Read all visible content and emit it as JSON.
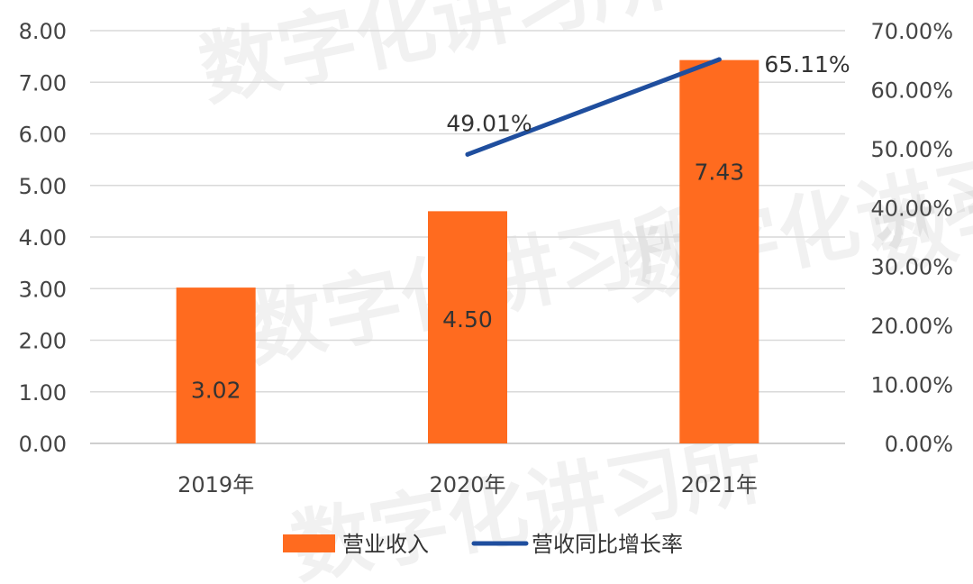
{
  "watermark": "数字化讲习所",
  "chart_data": {
    "type": "bar",
    "categories": [
      "2019年",
      "2020年",
      "2021年"
    ],
    "series": [
      {
        "name": "营业收入",
        "type": "bar",
        "axis": "left",
        "color": "#FF6B1F",
        "values": [
          3.02,
          4.5,
          7.43
        ],
        "labels": [
          "3.02",
          "4.50",
          "7.43"
        ]
      },
      {
        "name": "营收同比增长率",
        "type": "line",
        "axis": "right",
        "color": "#1F4E9E",
        "values": [
          null,
          49.01,
          65.11
        ],
        "labels": [
          "",
          "49.01%",
          "65.11%"
        ]
      }
    ],
    "y_left": {
      "ylim": [
        0,
        8
      ],
      "ticks": [
        "0.00",
        "1.00",
        "2.00",
        "3.00",
        "4.00",
        "5.00",
        "6.00",
        "7.00",
        "8.00"
      ]
    },
    "y_right": {
      "ylim": [
        0,
        70
      ],
      "ticks": [
        "0.00%",
        "10.00%",
        "20.00%",
        "30.00%",
        "40.00%",
        "50.00%",
        "60.00%",
        "70.00%"
      ]
    },
    "grid": true,
    "legend": "bottom"
  }
}
